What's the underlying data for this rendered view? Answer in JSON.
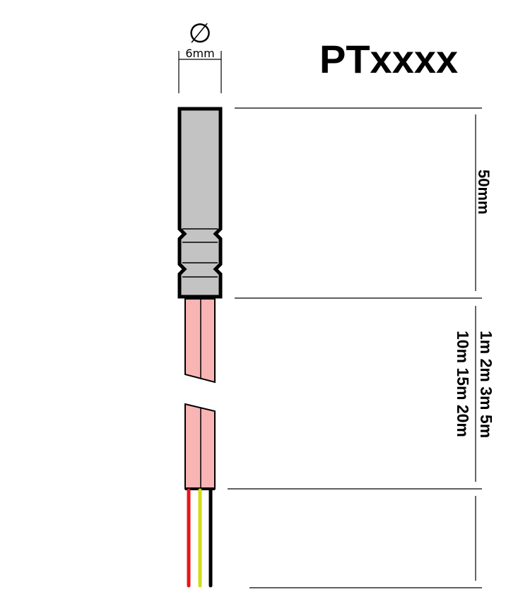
{
  "title": "PTxxxx",
  "diameter": {
    "symbol": "∅",
    "label": "6mm"
  },
  "probe_length": {
    "label": "50mm"
  },
  "cable_length": {
    "line1": "1m 2m 3m 5m",
    "line2": "10m 15m 20m"
  },
  "colors": {
    "probe_fill": "#c3c3c3",
    "cable_fill": "#f9b4b4",
    "wire_red": "#e8141a",
    "wire_yellow": "#d2dc14",
    "wire_black": "#000000"
  }
}
